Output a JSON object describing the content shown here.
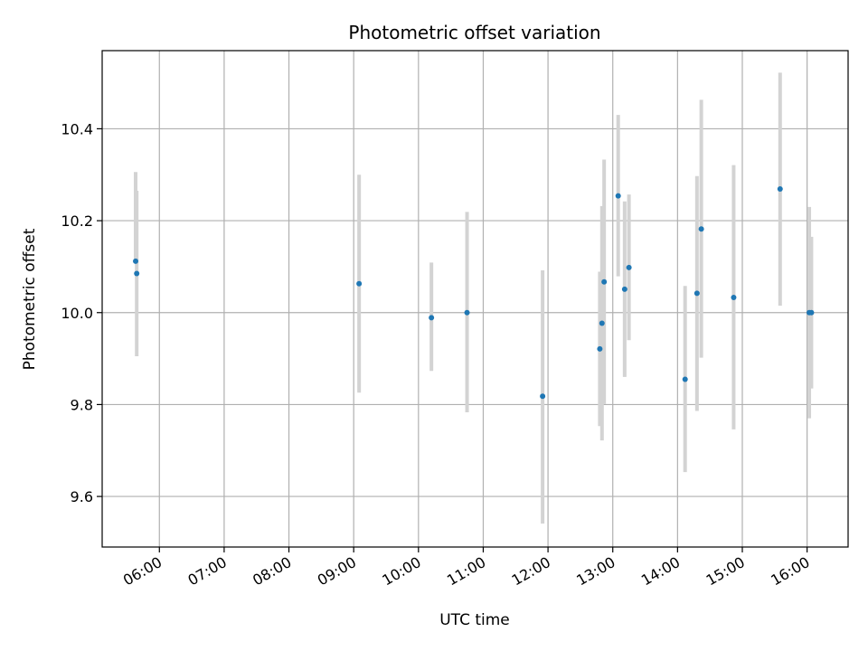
{
  "chart_data": {
    "type": "scatter",
    "title": "Photometric offset variation",
    "xlabel": "UTC time",
    "ylabel": "Photometric offset",
    "xlim": [
      "05:07",
      "16:38"
    ],
    "ylim": [
      9.49,
      10.57
    ],
    "x_ticks": [
      "06:00",
      "07:00",
      "08:00",
      "09:00",
      "10:00",
      "11:00",
      "12:00",
      "13:00",
      "14:00",
      "15:00",
      "16:00"
    ],
    "y_ticks": [
      9.6,
      9.8,
      10.0,
      10.2,
      10.4
    ],
    "grid": true,
    "marker_color": "#1f77b4",
    "errorbar_color": "#d3d3d3",
    "points": [
      {
        "x": "05:38",
        "y": 10.112,
        "err_low": 10.112,
        "err_high": 10.306
      },
      {
        "x": "05:39",
        "y": 10.085,
        "err_low": 9.905,
        "err_high": 10.265
      },
      {
        "x": "09:05",
        "y": 10.063,
        "err_low": 9.826,
        "err_high": 10.3
      },
      {
        "x": "10:12",
        "y": 9.989,
        "err_low": 9.873,
        "err_high": 10.109
      },
      {
        "x": "10:45",
        "y": 10.0,
        "err_low": 9.783,
        "err_high": 10.219
      },
      {
        "x": "11:55",
        "y": 9.818,
        "err_low": 9.541,
        "err_high": 10.092
      },
      {
        "x": "12:48",
        "y": 9.921,
        "err_low": 9.753,
        "err_high": 10.089
      },
      {
        "x": "12:50",
        "y": 9.977,
        "err_low": 9.722,
        "err_high": 10.232
      },
      {
        "x": "12:52",
        "y": 10.067,
        "err_low": 9.801,
        "err_high": 10.333
      },
      {
        "x": "13:05",
        "y": 10.254,
        "err_low": 10.079,
        "err_high": 10.43
      },
      {
        "x": "13:11",
        "y": 10.051,
        "err_low": 9.86,
        "err_high": 10.242
      },
      {
        "x": "13:15",
        "y": 10.098,
        "err_low": 9.94,
        "err_high": 10.257
      },
      {
        "x": "14:07",
        "y": 9.855,
        "err_low": 9.653,
        "err_high": 10.058
      },
      {
        "x": "14:18",
        "y": 10.042,
        "err_low": 9.786,
        "err_high": 10.297
      },
      {
        "x": "14:22",
        "y": 10.182,
        "err_low": 9.902,
        "err_high": 10.463
      },
      {
        "x": "14:52",
        "y": 10.033,
        "err_low": 9.746,
        "err_high": 10.321
      },
      {
        "x": "15:35",
        "y": 10.269,
        "err_low": 10.015,
        "err_high": 10.522
      },
      {
        "x": "16:02",
        "y": 10.0,
        "err_low": 9.77,
        "err_high": 10.23
      },
      {
        "x": "16:04",
        "y": 10.0,
        "err_low": 9.835,
        "err_high": 10.165
      }
    ]
  }
}
